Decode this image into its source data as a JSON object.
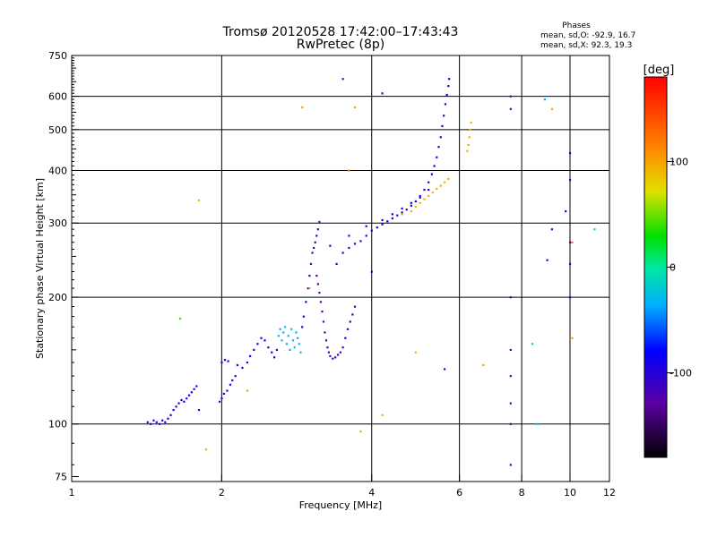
{
  "chart_data": {
    "type": "scatter",
    "title": "Tromsø 20120528 17:42:00–17:43:43",
    "subtitle": "RwPretec (8p)",
    "xlabel": "Frequency [MHz]",
    "ylabel": "Stationary phase Virtual Height [km]",
    "x_scale": "log",
    "y_scale": "log",
    "xlim": [
      1,
      12
    ],
    "ylim": [
      73,
      750
    ],
    "x_ticks": [
      1,
      2,
      4,
      6,
      8,
      10,
      12
    ],
    "x_tick_labels": [
      "1",
      "2",
      "4",
      "6",
      "8",
      "10",
      "12"
    ],
    "x_grid": [
      2,
      4,
      6,
      8,
      10
    ],
    "y_ticks": [
      75,
      100,
      200,
      300,
      400,
      500,
      600,
      750
    ],
    "y_tick_labels": [
      "75",
      "100",
      "200",
      "300",
      "400",
      "500",
      "600",
      "750"
    ],
    "y_grid": [
      100,
      200,
      300,
      400,
      500,
      600
    ],
    "phases_info": {
      "title": "Phases",
      "line1": "mean, sd,O: -92.9, 16.7",
      "line2": "mean, sd,X:  92.3, 19.3"
    },
    "colorbar": {
      "label": "[deg]",
      "range": [
        -180,
        180
      ],
      "ticks": [
        100,
        0,
        -100
      ],
      "tick_labels": [
        "100",
        "0",
        "-100"
      ]
    },
    "series": [
      {
        "points": [
          [
            1.42,
            101,
            -95
          ],
          [
            1.44,
            100,
            -98
          ],
          [
            1.46,
            102,
            -100
          ],
          [
            1.48,
            101,
            -92
          ],
          [
            1.5,
            100,
            -96
          ],
          [
            1.52,
            102,
            -94
          ],
          [
            1.54,
            101,
            -99
          ],
          [
            1.56,
            103,
            -93
          ],
          [
            1.58,
            105,
            -95
          ],
          [
            1.6,
            108,
            -97
          ],
          [
            1.62,
            110,
            -94
          ],
          [
            1.64,
            112,
            -96
          ],
          [
            1.66,
            114,
            -92
          ],
          [
            1.68,
            113,
            -98
          ],
          [
            1.7,
            115,
            -95
          ],
          [
            1.72,
            117,
            -93
          ],
          [
            1.74,
            119,
            -96
          ],
          [
            1.76,
            121,
            -94
          ],
          [
            1.78,
            123,
            -97
          ],
          [
            1.8,
            108,
            -95
          ],
          [
            1.98,
            113,
            -96
          ],
          [
            2.0,
            115,
            -94
          ],
          [
            2.02,
            118,
            -97
          ],
          [
            2.05,
            120,
            -95
          ],
          [
            2.08,
            124,
            -93
          ],
          [
            2.1,
            127,
            -96
          ],
          [
            2.13,
            130,
            -94
          ],
          [
            2.0,
            140,
            -97
          ],
          [
            2.03,
            142,
            -95
          ],
          [
            2.06,
            141,
            -98
          ],
          [
            2.15,
            138,
            -94
          ],
          [
            2.2,
            136,
            -96
          ],
          [
            2.25,
            140,
            -93
          ],
          [
            2.28,
            145,
            -95
          ],
          [
            2.32,
            150,
            -97
          ],
          [
            2.36,
            155,
            -94
          ],
          [
            2.4,
            160,
            -96
          ],
          [
            2.44,
            158,
            -93
          ],
          [
            2.48,
            152,
            -95
          ],
          [
            2.52,
            148,
            -97
          ],
          [
            2.55,
            144,
            -94
          ],
          [
            2.58,
            150,
            -92
          ],
          [
            2.6,
            162,
            -30
          ],
          [
            2.62,
            168,
            -35
          ],
          [
            2.64,
            158,
            -32
          ],
          [
            2.66,
            165,
            -38
          ],
          [
            2.68,
            170,
            -28
          ],
          [
            2.7,
            155,
            -34
          ],
          [
            2.72,
            162,
            -31
          ],
          [
            2.74,
            150,
            -36
          ],
          [
            2.76,
            168,
            -29
          ],
          [
            2.78,
            158,
            -33
          ],
          [
            2.8,
            152,
            -30
          ],
          [
            2.82,
            165,
            -34
          ],
          [
            2.84,
            160,
            -37
          ],
          [
            2.86,
            155,
            -31
          ],
          [
            2.88,
            148,
            -35
          ],
          [
            2.9,
            170,
            -90
          ],
          [
            2.92,
            180,
            -95
          ],
          [
            2.95,
            195,
            -97
          ],
          [
            2.98,
            210,
            -100
          ],
          [
            3.0,
            225,
            -110
          ],
          [
            3.02,
            240,
            -115
          ],
          [
            3.04,
            255,
            -120
          ],
          [
            3.06,
            262,
            -118
          ],
          [
            3.08,
            270,
            -112
          ],
          [
            3.1,
            280,
            -110
          ],
          [
            3.12,
            290,
            -115
          ],
          [
            3.14,
            302,
            -120
          ],
          [
            3.1,
            225,
            -125
          ],
          [
            3.12,
            215,
            -128
          ],
          [
            3.14,
            205,
            -130
          ],
          [
            3.16,
            195,
            -128
          ],
          [
            3.18,
            185,
            -126
          ],
          [
            3.2,
            175,
            -124
          ],
          [
            3.22,
            165,
            -122
          ],
          [
            3.24,
            158,
            -120
          ],
          [
            3.26,
            152,
            -118
          ],
          [
            3.28,
            148,
            -116
          ],
          [
            3.3,
            145,
            -114
          ],
          [
            3.34,
            143,
            -112
          ],
          [
            3.38,
            144,
            -110
          ],
          [
            3.42,
            146,
            -112
          ],
          [
            3.46,
            148,
            -114
          ],
          [
            3.5,
            152,
            -110
          ],
          [
            3.54,
            160,
            -108
          ],
          [
            3.58,
            168,
            -106
          ],
          [
            3.62,
            175,
            -104
          ],
          [
            3.66,
            182,
            -102
          ],
          [
            3.7,
            190,
            -100
          ],
          [
            3.4,
            240,
            -105
          ],
          [
            3.5,
            255,
            -108
          ],
          [
            3.6,
            262,
            -110
          ],
          [
            3.7,
            268,
            -106
          ],
          [
            3.8,
            272,
            -104
          ],
          [
            3.9,
            280,
            -100
          ],
          [
            4.0,
            288,
            -98
          ],
          [
            4.1,
            293,
            -96
          ],
          [
            4.2,
            298,
            -94
          ],
          [
            4.3,
            303,
            -92
          ],
          [
            4.4,
            308,
            -95
          ],
          [
            4.5,
            313,
            -97
          ],
          [
            4.6,
            318,
            -94
          ],
          [
            4.7,
            323,
            -96
          ],
          [
            4.8,
            330,
            -93
          ],
          [
            4.9,
            338,
            -95
          ],
          [
            5.0,
            348,
            -97
          ],
          [
            5.1,
            360,
            -94
          ],
          [
            5.2,
            375,
            -96
          ],
          [
            5.28,
            392,
            -93
          ],
          [
            5.34,
            410,
            -95
          ],
          [
            5.4,
            430,
            -97
          ],
          [
            5.45,
            455,
            -94
          ],
          [
            5.5,
            480,
            -96
          ],
          [
            5.54,
            510,
            -93
          ],
          [
            5.58,
            540,
            -95
          ],
          [
            5.62,
            575,
            -97
          ],
          [
            5.66,
            605,
            -94
          ],
          [
            5.7,
            635,
            -96
          ],
          [
            5.72,
            660,
            -93
          ],
          [
            4.2,
            305,
            -92
          ],
          [
            4.4,
            315,
            -94
          ],
          [
            4.6,
            325,
            -96
          ],
          [
            4.8,
            335,
            -93
          ],
          [
            5.0,
            345,
            -95
          ],
          [
            5.2,
            360,
            -97
          ],
          [
            3.3,
            265,
            -98
          ],
          [
            3.6,
            280,
            -100
          ],
          [
            3.9,
            295,
            -102
          ],
          [
            4.8,
            320,
            92
          ],
          [
            4.9,
            328,
            94
          ],
          [
            5.0,
            335,
            96
          ],
          [
            5.1,
            342,
            93
          ],
          [
            5.2,
            348,
            95
          ],
          [
            5.3,
            355,
            92
          ],
          [
            5.4,
            362,
            94
          ],
          [
            5.5,
            368,
            96
          ],
          [
            5.6,
            375,
            93
          ],
          [
            5.7,
            382,
            95
          ],
          [
            6.22,
            445,
            92
          ],
          [
            6.25,
            460,
            94
          ],
          [
            6.28,
            480,
            96
          ],
          [
            6.3,
            500,
            93
          ],
          [
            6.33,
            520,
            95
          ],
          [
            7.6,
            600,
            -120
          ],
          [
            7.6,
            560,
            -115
          ],
          [
            7.6,
            200,
            -118
          ],
          [
            7.6,
            150,
            -112
          ],
          [
            7.6,
            130,
            -116
          ],
          [
            7.6,
            112,
            -114
          ],
          [
            7.6,
            100,
            -119
          ],
          [
            7.6,
            80,
            -115
          ],
          [
            10.0,
            440,
            -110
          ],
          [
            10.0,
            380,
            -112
          ],
          [
            10.0,
            270,
            -108
          ],
          [
            10.0,
            240,
            -106
          ],
          [
            10.0,
            200,
            -110
          ],
          [
            9.8,
            320,
            -95
          ],
          [
            9.0,
            245,
            -100
          ],
          [
            9.2,
            290,
            -108
          ],
          [
            1.8,
            340,
            95
          ],
          [
            1.65,
            178,
            40
          ],
          [
            1.86,
            87,
            95
          ],
          [
            2.9,
            565,
            95
          ],
          [
            3.7,
            565,
            100
          ],
          [
            3.5,
            660,
            -125
          ],
          [
            4.2,
            610,
            -115
          ],
          [
            4.6,
            315,
            100
          ],
          [
            6.7,
            138,
            100
          ],
          [
            5.6,
            135,
            -110
          ],
          [
            8.4,
            155,
            -20
          ],
          [
            8.6,
            100,
            -30
          ],
          [
            8.9,
            590,
            -40
          ],
          [
            9.2,
            560,
            100
          ],
          [
            11.2,
            290,
            10
          ],
          [
            10.1,
            270,
            120
          ],
          [
            10.1,
            160,
            105
          ],
          [
            2.25,
            120,
            100
          ],
          [
            4.9,
            148,
            95
          ],
          [
            3.6,
            400,
            110
          ],
          [
            3.0,
            210,
            100
          ],
          [
            4.0,
            230,
            -100
          ],
          [
            4.2,
            105,
            95
          ],
          [
            3.8,
            96,
            100
          ]
        ]
      }
    ]
  }
}
